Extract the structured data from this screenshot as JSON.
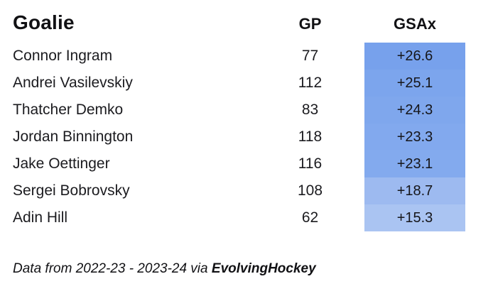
{
  "table": {
    "headers": {
      "goalie": "Goalie",
      "gp": "GP",
      "gsax": "GSAx"
    },
    "rows": [
      {
        "goalie": "Connor Ingram",
        "gp": "77",
        "gsax": "+26.6",
        "cell_color": "#77A1EC"
      },
      {
        "goalie": "Andrei Vasilevskiy",
        "gp": "112",
        "gsax": "+25.1",
        "cell_color": "#7CA5ED"
      },
      {
        "goalie": "Thatcher Demko",
        "gp": "83",
        "gsax": "+24.3",
        "cell_color": "#7FA7ED"
      },
      {
        "goalie": "Jordan Binnington",
        "gp": "118",
        "gsax": "+23.3",
        "cell_color": "#82A9EE"
      },
      {
        "goalie": "Jake Oettinger",
        "gp": "116",
        "gsax": "+23.1",
        "cell_color": "#83AAEE"
      },
      {
        "goalie": "Sergei Bobrovsky",
        "gp": "108",
        "gsax": "+18.7",
        "cell_color": "#9DBAF0"
      },
      {
        "goalie": "Adin Hill",
        "gp": "62",
        "gsax": "+15.3",
        "cell_color": "#AAC4F2"
      }
    ]
  },
  "footer": {
    "prefix": "Data from 2022-23 - 2023-24 via ",
    "source": "EvolvingHockey"
  },
  "colors": {
    "background": "#ffffff",
    "text": "#111114",
    "heatmap_high": "#77A1EC",
    "heatmap_low": "#AAC4F2"
  },
  "chart_data": {
    "type": "table",
    "title": "",
    "columns": [
      "Goalie",
      "GP",
      "GSAx"
    ],
    "rows": [
      [
        "Connor Ingram",
        77,
        26.6
      ],
      [
        "Andrei Vasilevskiy",
        112,
        25.1
      ],
      [
        "Thatcher Demko",
        83,
        24.3
      ],
      [
        "Jordan Binnington",
        118,
        23.3
      ],
      [
        "Jake Oettinger",
        116,
        23.1
      ],
      [
        "Sergei Bobrovsky",
        108,
        18.7
      ],
      [
        "Adin Hill",
        62,
        15.3
      ]
    ],
    "annotations": [
      "Data from 2022-23 - 2023-24 via EvolvingHockey"
    ],
    "layout_hints": {
      "gsax_column_heatmap": "blue shading, darker = higher GSAx",
      "goalie_align": "left",
      "gp_align": "center",
      "gsax_align": "center"
    }
  }
}
